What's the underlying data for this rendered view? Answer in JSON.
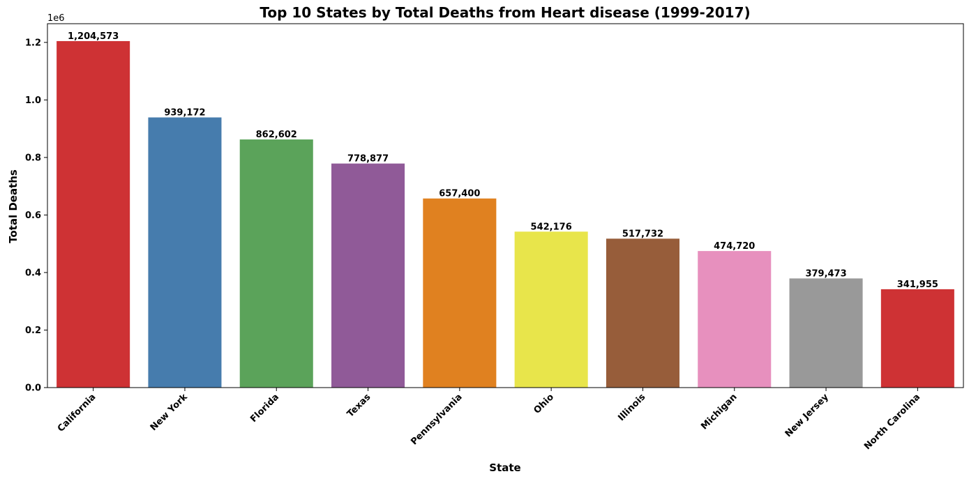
{
  "chart_data": {
    "type": "bar",
    "title": "Top 10 States by Total Deaths from Heart disease (1999-2017)",
    "xlabel": "State",
    "ylabel": "Total Deaths",
    "y_scale_label": "1e6",
    "ylim": [
      0,
      1.265
    ],
    "y_ticks": [
      0.0,
      0.2,
      0.4,
      0.6,
      0.8,
      1.0,
      1.2
    ],
    "y_tick_labels": [
      "0.0",
      "0.2",
      "0.4",
      "0.6",
      "0.8",
      "1.0",
      "1.2"
    ],
    "grid": false,
    "categories": [
      "California",
      "New York",
      "Florida",
      "Texas",
      "Pennsylvania",
      "Ohio",
      "Illinois",
      "Michigan",
      "New Jersey",
      "North Carolina"
    ],
    "values": [
      1204573,
      939172,
      862602,
      778877,
      657400,
      542176,
      517732,
      474720,
      379473,
      341955
    ],
    "value_labels": [
      "1,204,573",
      "939,172",
      "862,602",
      "778,877",
      "657,400",
      "542,176",
      "517,732",
      "474,720",
      "379,473",
      "341,955"
    ],
    "colors": [
      "#ce3234",
      "#467cad",
      "#5ba35a",
      "#905a98",
      "#e08120",
      "#e8e54b",
      "#975d3a",
      "#e790be",
      "#999999",
      "#ce3234"
    ]
  }
}
